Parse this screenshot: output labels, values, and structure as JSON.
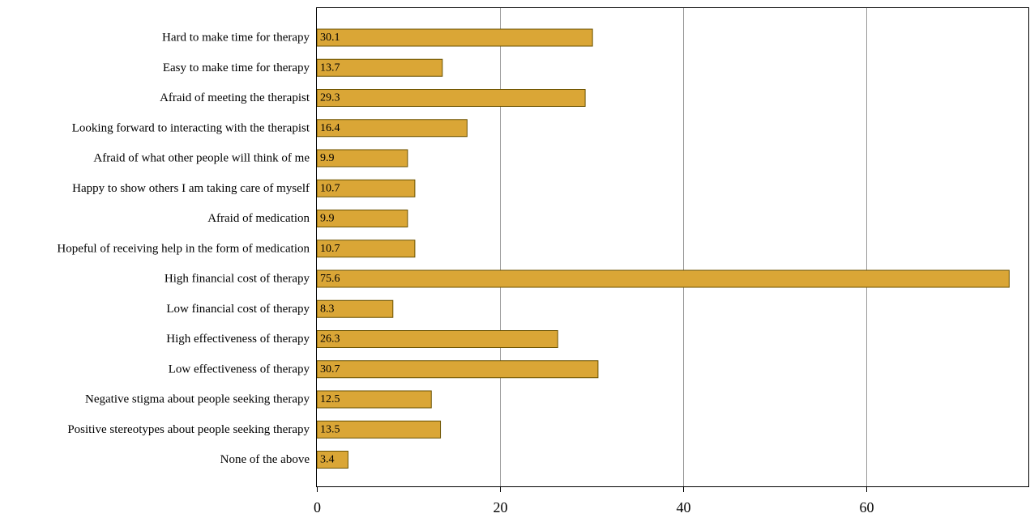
{
  "chart_data": {
    "type": "bar",
    "orientation": "horizontal",
    "title": "",
    "xlabel": "",
    "ylabel": "",
    "categories": [
      "Hard to make time for therapy",
      "Easy to make time for therapy",
      "Afraid of meeting the therapist",
      "Looking forward to interacting with the therapist",
      "Afraid of what other people will think of me",
      "Happy to show others I am taking care of myself",
      "Afraid of medication",
      "Hopeful of receiving help in the form of medication",
      "High financial cost of therapy",
      "Low financial cost of therapy",
      "High effectiveness of therapy",
      "Low effectiveness of therapy",
      "Negative stigma about people seeking therapy",
      "Positive stereotypes about people seeking therapy",
      "None of the above"
    ],
    "values": [
      30.1,
      13.7,
      29.3,
      16.4,
      9.9,
      10.7,
      9.9,
      10.7,
      75.6,
      8.3,
      26.3,
      30.7,
      12.5,
      13.5,
      3.4
    ],
    "value_labels": [
      "30.1",
      "13.7",
      "29.3",
      "16.4",
      "9.9",
      "10.7",
      "9.9",
      "10.7",
      "75.6",
      "8.3",
      "26.3",
      "30.7",
      "12.5",
      "13.5",
      "3.4"
    ],
    "xlim": [
      0,
      77
    ],
    "xticks": [
      0,
      20,
      40,
      60
    ],
    "xtick_labels": [
      "0",
      "20",
      "40",
      "60"
    ],
    "grid": "vertical",
    "legend": "none",
    "colors": {
      "bar_fill": "#DAA636",
      "bar_stroke": "#6B5200",
      "grid": "#999999",
      "axis": "#000000"
    }
  }
}
